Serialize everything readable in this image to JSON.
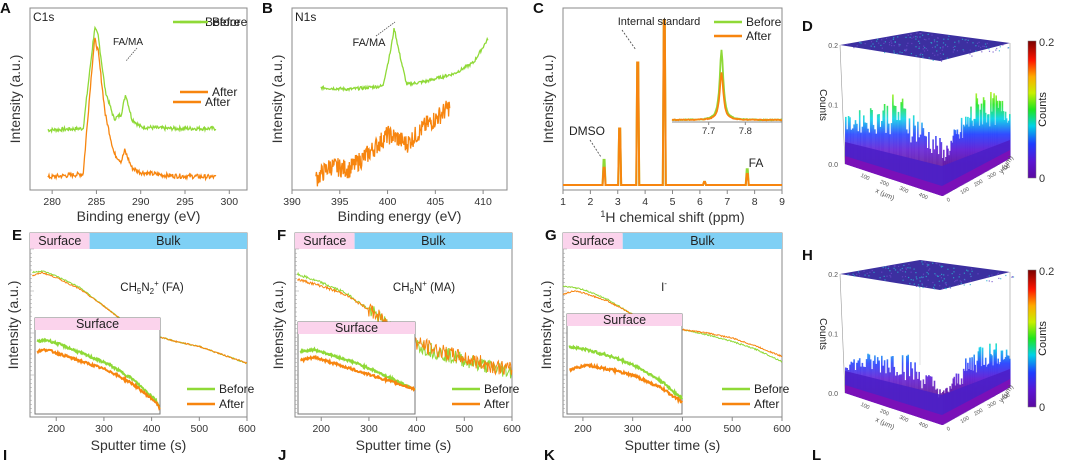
{
  "colors": {
    "before": "#8fd937",
    "after": "#f7850f",
    "surface_band": "#fbd3ec",
    "bulk_band": "#7fd0f5",
    "axis": "#888888"
  },
  "chart_data": [
    {
      "id": "A",
      "type": "line",
      "panel_label": "A",
      "title": "C1s",
      "xlabel": "Binding energy (eV)",
      "ylabel": "Intensity (a.u.)",
      "xlim": [
        277.5,
        302
      ],
      "xticks": [
        280,
        285,
        290,
        295,
        300
      ],
      "annotation": "FA/MA",
      "legend": [
        "Before",
        "After"
      ],
      "series": [
        {
          "name": "Before",
          "x": [
            279.5,
            283.5,
            284.5,
            284.8,
            285.2,
            286,
            287,
            287.8,
            288.3,
            289,
            290,
            293,
            298.5
          ],
          "y": [
            0.35,
            0.36,
            0.85,
            1.0,
            0.95,
            0.6,
            0.42,
            0.45,
            0.58,
            0.42,
            0.37,
            0.36,
            0.36
          ]
        },
        {
          "name": "After",
          "x": [
            279.5,
            283.5,
            284.5,
            284.8,
            285.2,
            286,
            287,
            287.8,
            288.2,
            289,
            290,
            293,
            298.5
          ],
          "y": [
            0.05,
            0.07,
            0.75,
            0.93,
            0.85,
            0.45,
            0.2,
            0.15,
            0.22,
            0.11,
            0.08,
            0.06,
            0.05
          ]
        }
      ]
    },
    {
      "id": "B",
      "type": "line",
      "panel_label": "B",
      "title": "N1s",
      "xlabel": "Binding energy (eV)",
      "ylabel": "Intensity (a.u.)",
      "xlim": [
        390,
        412.5
      ],
      "xticks": [
        390,
        395,
        400,
        405,
        410
      ],
      "annotation": "FA/MA",
      "legend": [
        "Before",
        "After"
      ],
      "series": [
        {
          "name": "Before",
          "x": [
            393,
            396,
            399.5,
            400.3,
            400.7,
            401.2,
            402,
            404,
            407,
            409,
            410.5
          ],
          "y": [
            0.62,
            0.61,
            0.63,
            0.85,
            1.0,
            0.85,
            0.64,
            0.66,
            0.71,
            0.78,
            0.93
          ]
        },
        {
          "name": "After",
          "x": [
            392.5,
            394,
            396,
            398,
            400,
            401,
            402,
            403,
            404,
            405,
            406.5
          ],
          "y": [
            0.04,
            0.12,
            0.1,
            0.2,
            0.32,
            0.3,
            0.26,
            0.32,
            0.38,
            0.42,
            0.5
          ]
        }
      ]
    },
    {
      "id": "C",
      "type": "line",
      "panel_label": "C",
      "xlabel": "¹H chemical shift (ppm)",
      "ylabel": "Intensity (a.u.)",
      "xlim": [
        1,
        9
      ],
      "xticks": [
        1,
        2,
        3,
        4,
        5,
        6,
        7,
        8,
        9
      ],
      "annotations": [
        "Internal standard",
        "DMSO",
        "FA"
      ],
      "legend": [
        "Before",
        "After"
      ],
      "peaks": [
        {
          "ppm": 2.5,
          "before": 0.16,
          "after": 0.11
        },
        {
          "ppm": 3.07,
          "before": 0.36,
          "after": 0.36
        },
        {
          "ppm": 3.73,
          "before": 0.78,
          "after": 0.78
        },
        {
          "ppm": 4.7,
          "before": 1.05,
          "after": 1.05
        },
        {
          "ppm": 6.17,
          "before": 0.02,
          "after": 0.02
        },
        {
          "ppm": 7.73,
          "before": 0.1,
          "after": 0.07
        }
      ],
      "inset": {
        "xlim": [
          7.6,
          7.9
        ],
        "xticks": [
          7.7,
          7.8
        ],
        "peak_ppm": 7.735,
        "before": 1.0,
        "after": 0.68
      }
    },
    {
      "id": "D",
      "type": "heatmap",
      "panel_label": "D",
      "render": "3d-surface",
      "zlabel": "Counts",
      "xlabel": "x (μm)",
      "ylabel": "y (μm)",
      "zlim": [
        0,
        0.2
      ],
      "zticks": [
        "0.0",
        "0.1",
        "0.2"
      ],
      "xticks": [
        "100",
        "200",
        "300",
        "400"
      ],
      "yticks": [
        "0",
        "100",
        "200",
        "300",
        "400"
      ],
      "colorbar": {
        "label": "Counts",
        "min": "0",
        "max": "0.2"
      },
      "typical_level": 0.11
    },
    {
      "id": "E",
      "type": "line",
      "panel_label": "E",
      "species": "CH5N2+ (FA)",
      "xlabel": "Sputter time (s)",
      "ylabel": "Intensity (a.u.)",
      "xlim": [
        145,
        600
      ],
      "xticks": [
        200,
        300,
        400,
        500,
        600
      ],
      "yscale": "log",
      "bands": [
        {
          "label": "Surface",
          "from": 145,
          "to": 270
        },
        {
          "label": "Bulk",
          "from": 270,
          "to": 600
        }
      ],
      "legend": [
        "Before",
        "After"
      ],
      "series": [
        {
          "name": "Before",
          "x": [
            150,
            170,
            200,
            250,
            300,
            350,
            400,
            450,
            500,
            550,
            600
          ],
          "y": [
            0.86,
            0.87,
            0.84,
            0.77,
            0.66,
            0.55,
            0.49,
            0.45,
            0.42,
            0.37,
            0.32
          ]
        },
        {
          "name": "After",
          "x": [
            150,
            170,
            200,
            250,
            300,
            350,
            400,
            450,
            500,
            550,
            600
          ],
          "y": [
            0.84,
            0.86,
            0.83,
            0.76,
            0.66,
            0.55,
            0.49,
            0.45,
            0.42,
            0.37,
            0.32
          ]
        }
      ],
      "inset": {
        "title": "Surface",
        "xlim": [
          145,
          410
        ],
        "series": [
          {
            "name": "Before",
            "x": [
              150,
              170,
              200,
              250,
              300,
              350,
              400,
              410
            ],
            "y": [
              0.88,
              0.9,
              0.84,
              0.72,
              0.6,
              0.42,
              0.16,
              0.05
            ]
          },
          {
            "name": "After",
            "x": [
              150,
              170,
              200,
              250,
              300,
              350,
              400,
              410
            ],
            "y": [
              0.76,
              0.78,
              0.72,
              0.62,
              0.52,
              0.36,
              0.13,
              0.04
            ]
          }
        ]
      }
    },
    {
      "id": "F",
      "type": "line",
      "panel_label": "F",
      "species": "CH6N+ (MA)",
      "xlabel": "Sputter time (s)",
      "ylabel": "Intensity (a.u.)",
      "xlim": [
        145,
        600
      ],
      "xticks": [
        200,
        300,
        400,
        500,
        600
      ],
      "yscale": "log",
      "bands": [
        {
          "label": "Surface",
          "from": 145,
          "to": 270
        },
        {
          "label": "Bulk",
          "from": 270,
          "to": 600
        }
      ],
      "legend": [
        "Before",
        "After"
      ],
      "series": [
        {
          "name": "Before",
          "x": [
            150,
            200,
            250,
            300,
            350,
            400,
            450,
            500,
            550,
            600
          ],
          "y": [
            0.85,
            0.8,
            0.74,
            0.64,
            0.52,
            0.43,
            0.38,
            0.34,
            0.3,
            0.27
          ]
        },
        {
          "name": "After",
          "x": [
            150,
            200,
            250,
            300,
            350,
            400,
            450,
            500,
            550,
            600
          ],
          "y": [
            0.82,
            0.78,
            0.73,
            0.64,
            0.53,
            0.44,
            0.39,
            0.35,
            0.31,
            0.28
          ]
        }
      ],
      "inset": {
        "title": "Surface",
        "xlim": [
          145,
          390
        ],
        "series": [
          {
            "name": "Before",
            "x": [
              150,
              180,
              220,
              260,
              300,
              340,
              390
            ],
            "y": [
              0.8,
              0.82,
              0.74,
              0.66,
              0.56,
              0.44,
              0.3
            ]
          },
          {
            "name": "After",
            "x": [
              150,
              180,
              220,
              260,
              300,
              340,
              390
            ],
            "y": [
              0.68,
              0.72,
              0.64,
              0.56,
              0.48,
              0.4,
              0.3
            ]
          }
        ]
      }
    },
    {
      "id": "G",
      "type": "line",
      "panel_label": "G",
      "species": "I-",
      "xlabel": "Sputter time (s)",
      "ylabel": "Intensity (a.u.)",
      "xlim": [
        160,
        600
      ],
      "xticks": [
        200,
        300,
        400,
        500,
        600
      ],
      "yscale": "log",
      "bands": [
        {
          "label": "Surface",
          "from": 160,
          "to": 280
        },
        {
          "label": "Bulk",
          "from": 280,
          "to": 600
        }
      ],
      "legend": [
        "Before",
        "After"
      ],
      "series": [
        {
          "name": "Before",
          "x": [
            160,
            200,
            250,
            300,
            350,
            400,
            450,
            500,
            550,
            600
          ],
          "y": [
            0.78,
            0.76,
            0.7,
            0.61,
            0.55,
            0.52,
            0.49,
            0.45,
            0.4,
            0.33
          ]
        },
        {
          "name": "After",
          "x": [
            160,
            180,
            200,
            250,
            300,
            350,
            400,
            450,
            500,
            550,
            600
          ],
          "y": [
            0.73,
            0.75,
            0.74,
            0.69,
            0.61,
            0.55,
            0.52,
            0.5,
            0.47,
            0.42,
            0.36
          ]
        }
      ],
      "inset": {
        "title": "Surface",
        "xlim": [
          160,
          390
        ],
        "series": [
          {
            "name": "Before",
            "x": [
              165,
              200,
              250,
              300,
              350,
              390
            ],
            "y": [
              0.78,
              0.74,
              0.66,
              0.54,
              0.36,
              0.16
            ]
          },
          {
            "name": "After",
            "x": [
              165,
              200,
              250,
              300,
              350,
              390
            ],
            "y": [
              0.5,
              0.56,
              0.5,
              0.42,
              0.28,
              0.12
            ]
          }
        ]
      }
    },
    {
      "id": "H",
      "type": "heatmap",
      "panel_label": "H",
      "render": "3d-surface",
      "zlabel": "Counts",
      "xlabel": "x (μm)",
      "ylabel": "y (μm)",
      "zlim": [
        0,
        0.2
      ],
      "zticks": [
        "0.0",
        "0.1",
        "0.2"
      ],
      "xticks": [
        "100",
        "200",
        "300",
        "400"
      ],
      "yticks": [
        "0",
        "100",
        "200",
        "300",
        "400"
      ],
      "colorbar": {
        "label": "Counts",
        "min": "0",
        "max": "0.2"
      },
      "typical_level": 0.08
    }
  ],
  "extra_labels": [
    "I",
    "J",
    "K",
    "L"
  ]
}
